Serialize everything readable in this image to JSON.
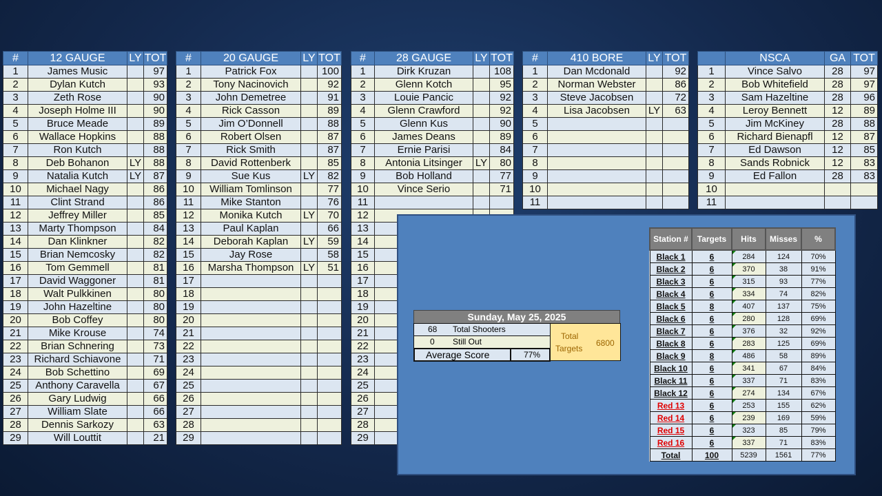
{
  "tables": [
    {
      "headers": [
        "#",
        "12 GAUGE",
        "LY",
        "TOT"
      ],
      "rows": [
        [
          "1",
          "James Music",
          "",
          "97"
        ],
        [
          "2",
          "Dylan Kutch",
          "",
          "93"
        ],
        [
          "3",
          "Zeth Rose",
          "",
          "90"
        ],
        [
          "4",
          "Joseph Holme III",
          "",
          "90"
        ],
        [
          "5",
          "Bruce Meade",
          "",
          "89"
        ],
        [
          "6",
          "Wallace Hopkins",
          "",
          "88"
        ],
        [
          "7",
          "Ron Kutch",
          "",
          "88"
        ],
        [
          "8",
          "Deb Bohanon",
          "LY",
          "88"
        ],
        [
          "9",
          "Natalia Kutch",
          "LY",
          "87"
        ],
        [
          "10",
          "Michael Nagy",
          "",
          "86"
        ],
        [
          "11",
          "Clint Strand",
          "",
          "86"
        ],
        [
          "12",
          "Jeffrey Miller",
          "",
          "85"
        ],
        [
          "13",
          "Marty Thompson",
          "",
          "84"
        ],
        [
          "14",
          "Dan Klinkner",
          "",
          "82"
        ],
        [
          "15",
          "Brian Nemcosky",
          "",
          "82"
        ],
        [
          "16",
          "Tom Gemmell",
          "",
          "81"
        ],
        [
          "17",
          "David Waggoner",
          "",
          "81"
        ],
        [
          "18",
          "Walt Pulkkinen",
          "",
          "80"
        ],
        [
          "19",
          "John Hazeltine",
          "",
          "80"
        ],
        [
          "20",
          "Bob Coffey",
          "",
          "80"
        ],
        [
          "21",
          "Mike Krouse",
          "",
          "74"
        ],
        [
          "22",
          "Brian Schnering",
          "",
          "73"
        ],
        [
          "23",
          "Richard Schiavone",
          "",
          "71"
        ],
        [
          "24",
          "Bob Schettino",
          "",
          "69"
        ],
        [
          "25",
          "Anthony Caravella",
          "",
          "67"
        ],
        [
          "26",
          "Gary Ludwig",
          "",
          "66"
        ],
        [
          "27",
          "William Slate",
          "",
          "66"
        ],
        [
          "28",
          "Dennis Sarkozy",
          "",
          "63"
        ],
        [
          "29",
          "Will Louttit",
          "",
          "21"
        ]
      ]
    },
    {
      "headers": [
        "#",
        "20 GAUGE",
        "LY",
        "TOT"
      ],
      "rows": [
        [
          "1",
          "Patrick Fox",
          "",
          "100"
        ],
        [
          "2",
          "Tony Nacinovich",
          "",
          "92"
        ],
        [
          "3",
          "John Demetree",
          "",
          "91"
        ],
        [
          "4",
          "Rick Casson",
          "",
          "89"
        ],
        [
          "5",
          "Jim O’Donnell",
          "",
          "88"
        ],
        [
          "6",
          "Robert Olsen",
          "",
          "87"
        ],
        [
          "7",
          "Rick Smith",
          "",
          "87"
        ],
        [
          "8",
          "David Rottenberk",
          "",
          "85"
        ],
        [
          "9",
          "Sue Kus",
          "LY",
          "82"
        ],
        [
          "10",
          "William Tomlinson",
          "",
          "77"
        ],
        [
          "11",
          "Mike Stanton",
          "",
          "76"
        ],
        [
          "12",
          "Monika Kutch",
          "LY",
          "70"
        ],
        [
          "13",
          "Paul Kaplan",
          "",
          "66"
        ],
        [
          "14",
          "Deborah Kaplan",
          "LY",
          "59"
        ],
        [
          "15",
          "Jay Rose",
          "",
          "58"
        ],
        [
          "16",
          "Marsha Thompson",
          "LY",
          "51"
        ],
        [
          "17",
          "",
          "",
          ""
        ],
        [
          "18",
          "",
          "",
          ""
        ],
        [
          "19",
          "",
          "",
          ""
        ],
        [
          "20",
          "",
          "",
          ""
        ],
        [
          "21",
          "",
          "",
          ""
        ],
        [
          "22",
          "",
          "",
          ""
        ],
        [
          "23",
          "",
          "",
          ""
        ],
        [
          "24",
          "",
          "",
          ""
        ],
        [
          "25",
          "",
          "",
          ""
        ],
        [
          "26",
          "",
          "",
          ""
        ],
        [
          "27",
          "",
          "",
          ""
        ],
        [
          "28",
          "",
          "",
          ""
        ],
        [
          "29",
          "",
          "",
          ""
        ]
      ]
    },
    {
      "headers": [
        "#",
        "28 GAUGE",
        "LY",
        "TOT"
      ],
      "rows": [
        [
          "1",
          "Dirk Kruzan",
          "",
          "108"
        ],
        [
          "2",
          "Glenn Kotch",
          "",
          "95"
        ],
        [
          "3",
          "Louie Pancic",
          "",
          "92"
        ],
        [
          "4",
          "Glenn Crawford",
          "",
          "92"
        ],
        [
          "5",
          "Glenn Kus",
          "",
          "90"
        ],
        [
          "6",
          "James Deans",
          "",
          "89"
        ],
        [
          "7",
          "Ernie Parisi",
          "",
          "84"
        ],
        [
          "8",
          "Antonia Litsinger",
          "LY",
          "80"
        ],
        [
          "9",
          "Bob Holland",
          "",
          "77"
        ],
        [
          "10",
          "Vince Serio",
          "",
          "71"
        ],
        [
          "11",
          "",
          "",
          ""
        ],
        [
          "12",
          "",
          "",
          ""
        ],
        [
          "13",
          "",
          "",
          ""
        ],
        [
          "14",
          "",
          "",
          ""
        ],
        [
          "15",
          "",
          "",
          ""
        ],
        [
          "16",
          "",
          "",
          ""
        ],
        [
          "17",
          "",
          "",
          ""
        ],
        [
          "18",
          "",
          "",
          ""
        ],
        [
          "19",
          "",
          "",
          ""
        ],
        [
          "20",
          "",
          "",
          ""
        ],
        [
          "21",
          "",
          "",
          ""
        ],
        [
          "22",
          "",
          "",
          ""
        ],
        [
          "23",
          "",
          "",
          ""
        ],
        [
          "24",
          "",
          "",
          ""
        ],
        [
          "25",
          "",
          "",
          ""
        ],
        [
          "26",
          "",
          "",
          ""
        ],
        [
          "27",
          "",
          "",
          ""
        ],
        [
          "28",
          "",
          "",
          ""
        ],
        [
          "29",
          "",
          "",
          ""
        ]
      ]
    },
    {
      "headers": [
        "#",
        "410 BORE",
        "LY",
        "TOT"
      ],
      "rows": [
        [
          "1",
          "Dan Mcdonald",
          "",
          "92"
        ],
        [
          "2",
          "Norman Webster",
          "",
          "86"
        ],
        [
          "3",
          "Steve Jacobsen",
          "",
          "72"
        ],
        [
          "4",
          "Lisa Jacobsen",
          "LY",
          "63"
        ],
        [
          "5",
          "",
          "",
          ""
        ],
        [
          "6",
          "",
          "",
          ""
        ],
        [
          "7",
          "",
          "",
          ""
        ],
        [
          "8",
          "",
          "",
          ""
        ],
        [
          "9",
          "",
          "",
          ""
        ],
        [
          "10",
          "",
          "",
          ""
        ],
        [
          "11",
          "",
          "",
          ""
        ]
      ]
    },
    {
      "headers": [
        "",
        "NSCA",
        "GA",
        "TOT"
      ],
      "rows": [
        [
          "1",
          "Vince Salvo",
          "28",
          "97"
        ],
        [
          "2",
          "Bob Whitefield",
          "28",
          "97"
        ],
        [
          "3",
          "Sam Hazeltine",
          "28",
          "96"
        ],
        [
          "4",
          "Leroy Bennett",
          "12",
          "89"
        ],
        [
          "5",
          "Jim McKiney",
          "28",
          "88"
        ],
        [
          "6",
          "Richard Bienapfl",
          "12",
          "87"
        ],
        [
          "7",
          "Ed Dawson",
          "12",
          "85"
        ],
        [
          "8",
          "Sands Robnick",
          "12",
          "83"
        ],
        [
          "9",
          "Ed Fallon",
          "28",
          "83"
        ],
        [
          "10",
          "",
          "",
          ""
        ],
        [
          "11",
          "",
          "",
          ""
        ]
      ]
    }
  ],
  "summary": {
    "date": "Sunday, May 25, 2025",
    "total_shooters": "68",
    "total_shooters_label": "Total Shooters",
    "still_out": "0",
    "still_out_label": "Still Out",
    "average_label": "Average Score",
    "average": "77%",
    "total_targets_label1": "Total",
    "total_targets_label2": "Targets",
    "total_targets": "6800"
  },
  "stations": {
    "headers": [
      "Station #",
      "Targets",
      "Hits",
      "Misses",
      "%"
    ],
    "rows": [
      [
        "Black 1",
        "6",
        "284",
        "124",
        "70%"
      ],
      [
        "Black 2",
        "6",
        "370",
        "38",
        "91%"
      ],
      [
        "Black 3",
        "6",
        "315",
        "93",
        "77%"
      ],
      [
        "Black 4",
        "6",
        "334",
        "74",
        "82%"
      ],
      [
        "Black 5",
        "8",
        "407",
        "137",
        "75%"
      ],
      [
        "Black 6",
        "6",
        "280",
        "128",
        "69%"
      ],
      [
        "Black 7",
        "6",
        "376",
        "32",
        "92%"
      ],
      [
        "Black 8",
        "6",
        "283",
        "125",
        "69%"
      ],
      [
        "Black 9",
        "8",
        "486",
        "58",
        "89%"
      ],
      [
        "Black 10",
        "6",
        "341",
        "67",
        "84%"
      ],
      [
        "Black 11",
        "6",
        "337",
        "71",
        "83%"
      ],
      [
        "Black 12",
        "6",
        "274",
        "134",
        "67%"
      ],
      [
        "Red 13",
        "6",
        "253",
        "155",
        "62%"
      ],
      [
        "Red 14",
        "6",
        "239",
        "169",
        "59%"
      ],
      [
        "Red 15",
        "6",
        "323",
        "85",
        "79%"
      ],
      [
        "Red 16",
        "6",
        "337",
        "71",
        "83%"
      ]
    ],
    "total": [
      "Total",
      "100",
      "5239",
      "1561",
      "77%"
    ]
  },
  "colors": {
    "header": "#4f81bd",
    "row_odd": "#dce6f1",
    "row_even": "#eef1dd",
    "panel": "#4f81bd",
    "red_station": "#e00000",
    "total_targets_bg": "#ffe699"
  }
}
